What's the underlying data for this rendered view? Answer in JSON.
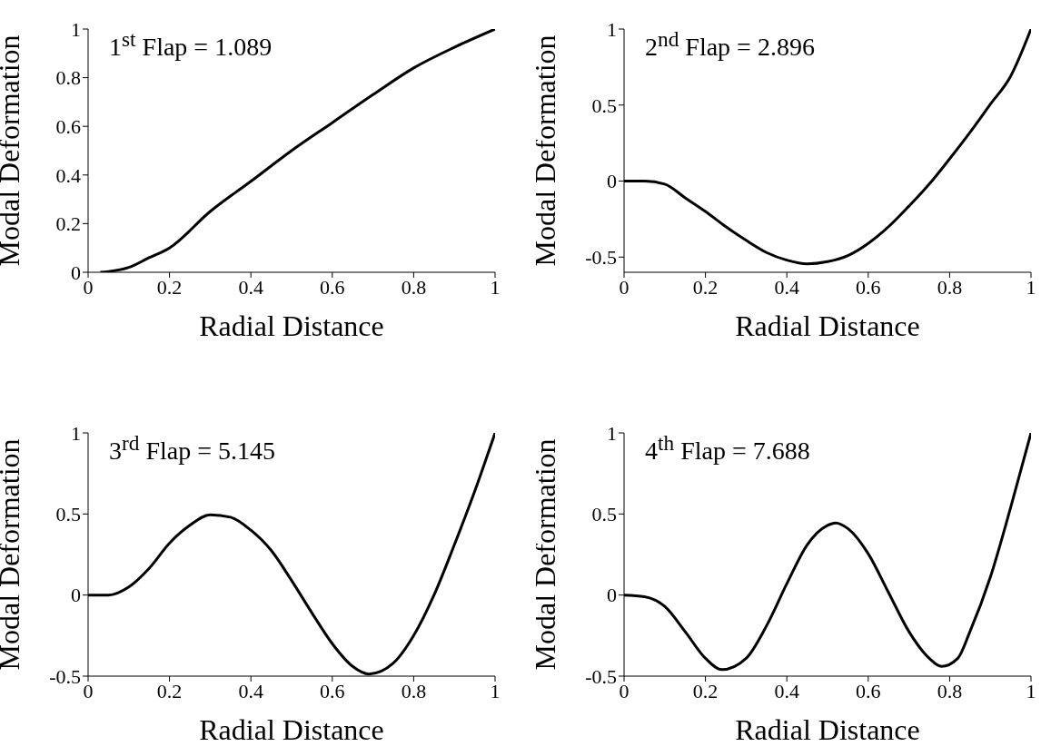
{
  "chart_data": [
    {
      "type": "line",
      "xlabel": "Radial Distance",
      "ylabel": "Modal Deformation",
      "annotations": [
        "1$^{st}$ Flap = 1.089"
      ],
      "xlim": [
        0,
        1
      ],
      "xticks": [
        0,
        0.2,
        0.4,
        0.6,
        0.8,
        1
      ],
      "ylim": [
        0,
        1
      ],
      "yticks": [
        0,
        0.2,
        0.4,
        0.6,
        0.8,
        1
      ],
      "series": [
        {
          "color": "#000000",
          "x": [
            0.03,
            0.05,
            0.1,
            0.15,
            0.2,
            0.3,
            0.4,
            0.5,
            0.6,
            0.7,
            0.8,
            0.9,
            1
          ],
          "values": [
            0,
            0.003,
            0.02,
            0.06,
            0.1,
            0.25,
            0.374,
            0.5,
            0.615,
            0.73,
            0.84,
            0.925,
            1
          ]
        }
      ]
    },
    {
      "type": "line",
      "xlabel": "Radial Distance",
      "ylabel": "Modal Deformation",
      "annotations": [
        "2$^{nd}$ Flap = 2.896"
      ],
      "xlim": [
        0,
        1
      ],
      "xticks": [
        0,
        0.2,
        0.4,
        0.6,
        0.8,
        1
      ],
      "ylim": [
        -0.6,
        1
      ],
      "yticks": [
        -0.5,
        0,
        0.5,
        1
      ],
      "series": [
        {
          "color": "#000000",
          "x": [
            0,
            0.05,
            0.1,
            0.15,
            0.2,
            0.25,
            0.3,
            0.35,
            0.4,
            0.45,
            0.5,
            0.55,
            0.6,
            0.65,
            0.7,
            0.75,
            0.8,
            0.85,
            0.9,
            0.95,
            1
          ],
          "values": [
            0,
            0,
            -0.02,
            -0.11,
            -0.2,
            -0.3,
            -0.39,
            -0.47,
            -0.52,
            -0.545,
            -0.53,
            -0.49,
            -0.41,
            -0.3,
            -0.165,
            -0.02,
            0.146,
            0.32,
            0.505,
            0.69,
            1
          ]
        }
      ]
    },
    {
      "type": "line",
      "xlabel": "Radial Distance",
      "ylabel": "Modal Deformation",
      "annotations": [
        "3$^{rd}$ Flap = 5.145"
      ],
      "xlim": [
        0,
        1
      ],
      "xticks": [
        0,
        0.2,
        0.4,
        0.6,
        0.8,
        1
      ],
      "ylim": [
        -0.5,
        1
      ],
      "yticks": [
        -0.5,
        0,
        0.5,
        1
      ],
      "series": [
        {
          "color": "#000000",
          "x": [
            0,
            0.05,
            0.1,
            0.15,
            0.2,
            0.25,
            0.3,
            0.35,
            0.4,
            0.45,
            0.5,
            0.55,
            0.6,
            0.65,
            0.69,
            0.75,
            0.8,
            0.85,
            0.9,
            0.95,
            1
          ],
          "values": [
            0,
            0,
            0.05,
            0.165,
            0.32,
            0.43,
            0.495,
            0.48,
            0.4,
            0.275,
            0.09,
            -0.11,
            -0.3,
            -0.44,
            -0.487,
            -0.42,
            -0.25,
            0,
            0.31,
            0.64,
            1
          ]
        }
      ]
    },
    {
      "type": "line",
      "xlabel": "Radial Distance",
      "ylabel": "Modal Deformation",
      "annotations": [
        "4$^{th}$ Flap = 7.688"
      ],
      "xlim": [
        0,
        1
      ],
      "xticks": [
        0,
        0.2,
        0.4,
        0.6,
        0.8,
        1
      ],
      "ylim": [
        -0.5,
        1
      ],
      "yticks": [
        -0.5,
        0,
        0.5,
        1
      ],
      "series": [
        {
          "color": "#000000",
          "x": [
            0,
            0.05,
            0.1,
            0.15,
            0.2,
            0.24,
            0.3,
            0.35,
            0.4,
            0.45,
            0.5,
            0.52,
            0.55,
            0.6,
            0.65,
            0.7,
            0.75,
            0.78,
            0.82,
            0.85,
            0.9,
            0.95,
            1
          ],
          "values": [
            0,
            -0.01,
            -0.07,
            -0.225,
            -0.39,
            -0.46,
            -0.39,
            -0.19,
            0.07,
            0.31,
            0.43,
            0.445,
            0.41,
            0.255,
            0.015,
            -0.225,
            -0.39,
            -0.44,
            -0.39,
            -0.225,
            0.11,
            0.54,
            1
          ]
        }
      ]
    }
  ]
}
